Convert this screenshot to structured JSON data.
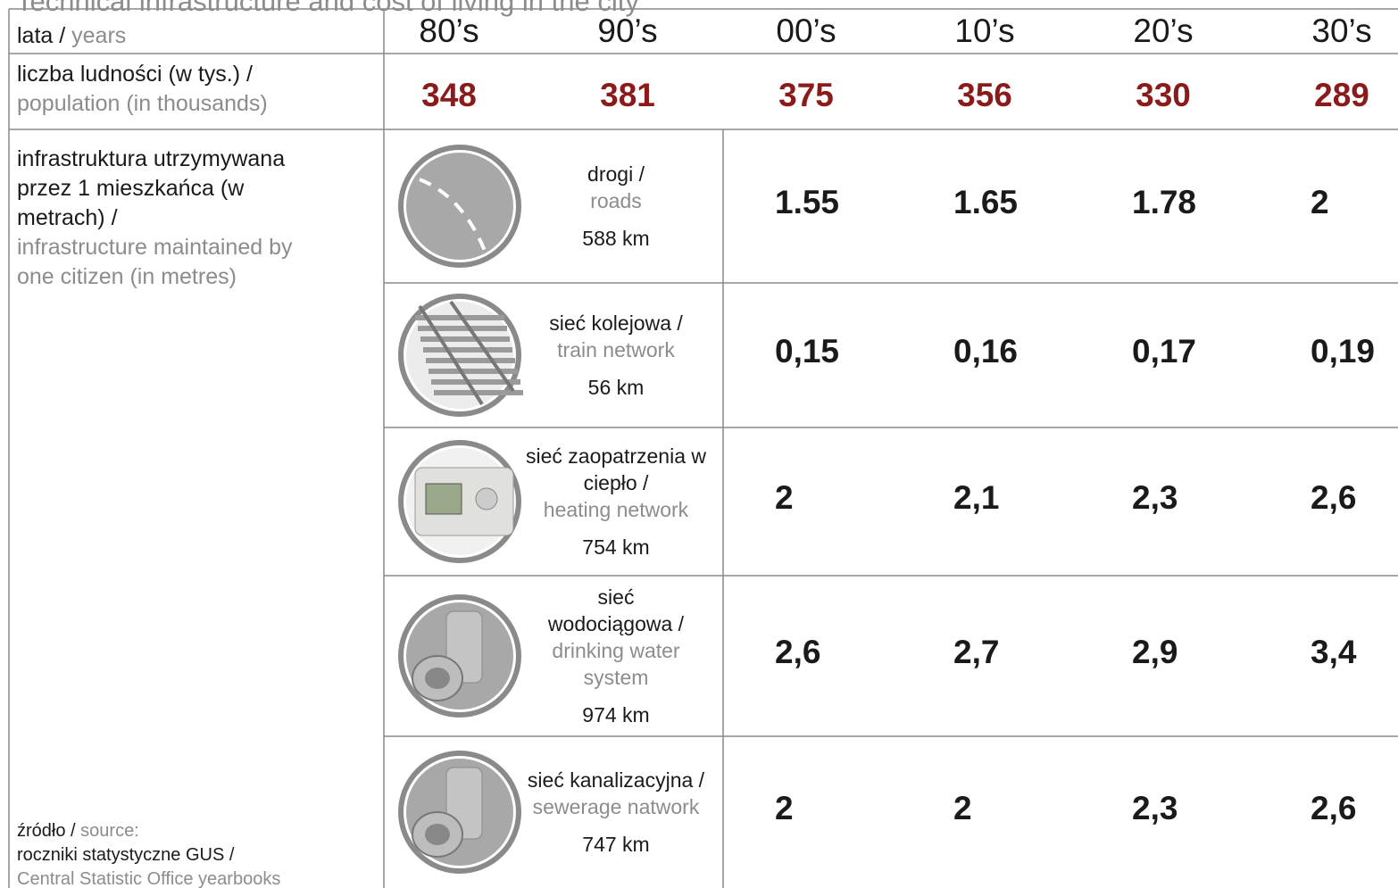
{
  "header": {
    "title": "Technical infrastructure and cost of living in the city"
  },
  "years": {
    "label_pl": "lata /",
    "label_en": "years",
    "values": [
      "80’s",
      "90’s",
      "00’s",
      "10’s",
      "20’s",
      "30’s"
    ]
  },
  "population": {
    "label_pl": "liczba ludności (w tys.) /",
    "label_en": "population (in thousands)",
    "values": [
      "348",
      "381",
      "375",
      "356",
      "330",
      "289"
    ]
  },
  "infrastructure": {
    "label_pl": "infrastruktura utrzymywana przez  1 mieszkańca (w metrach) /",
    "label_en": "infrastructure maintained by one citizen (in metres)",
    "rows": [
      {
        "name_pl": "drogi /",
        "name_en": "roads",
        "length": "588 km",
        "values": [
          "1.55",
          "1.65",
          "1.78",
          "2"
        ]
      },
      {
        "name_pl": "sieć kolejowa /",
        "name_en": "train network",
        "length": "56 km",
        "values": [
          "0,15",
          "0,16",
          "0,17",
          "0,19"
        ]
      },
      {
        "name_pl": "sieć zaopatrzenia w ciepło /",
        "name_en": "heating network",
        "length": "754 km",
        "values": [
          "2",
          "2,1",
          "2,3",
          "2,6"
        ]
      },
      {
        "name_pl": "sieć wodociągowa /",
        "name_en": "drinking water system",
        "length": "974 km",
        "values": [
          "2,6",
          "2,7",
          "2,9",
          "3,4"
        ]
      },
      {
        "name_pl": "sieć kanalizacyjna /",
        "name_en": "sewerage natwork",
        "length": "747 km",
        "values": [
          "2",
          "2",
          "2,3",
          "2,6"
        ]
      }
    ]
  },
  "source": {
    "label_pl": "źródło /",
    "label_en": "source:",
    "text_pl": "roczniki statystyczne GUS /",
    "text_en": "Central Statistic Office yearbooks"
  }
}
